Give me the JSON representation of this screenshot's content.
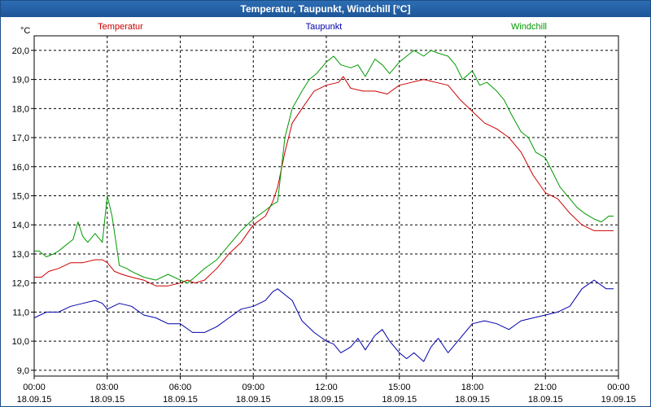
{
  "window": {
    "title": "Temperatur, Taupunkt, Windchill [°C]"
  },
  "chart_data": {
    "type": "line",
    "ylabel": "°C",
    "ylim": [
      8.8,
      20.5
    ],
    "xlim": [
      0,
      24
    ],
    "y_ticks": [
      9.0,
      10.0,
      11.0,
      12.0,
      13.0,
      14.0,
      15.0,
      16.0,
      17.0,
      18.0,
      19.0,
      20.0
    ],
    "y_tick_labels": [
      "9,0",
      "10,0",
      "11,0",
      "12,0",
      "13,0",
      "14,0",
      "15,0",
      "16,0",
      "17,0",
      "18,0",
      "19,0",
      "20,0"
    ],
    "x_ticks": [
      {
        "hour": 0,
        "time": "00:00",
        "date": "18.09.15"
      },
      {
        "hour": 3,
        "time": "03:00",
        "date": "18.09.15"
      },
      {
        "hour": 6,
        "time": "06:00",
        "date": "18.09.15"
      },
      {
        "hour": 9,
        "time": "09:00",
        "date": "18.09.15"
      },
      {
        "hour": 12,
        "time": "12:00",
        "date": "18.09.15"
      },
      {
        "hour": 15,
        "time": "15:00",
        "date": "18.09.15"
      },
      {
        "hour": 18,
        "time": "18:00",
        "date": "18.09.15"
      },
      {
        "hour": 21,
        "time": "21:00",
        "date": "18.09.15"
      },
      {
        "hour": 24,
        "time": "00:00",
        "date": "19.09.15"
      }
    ],
    "grid": true,
    "series": [
      {
        "name": "Temperatur",
        "color": "#cc0000",
        "x": [
          0.0,
          0.3,
          0.6,
          1.0,
          1.5,
          2.0,
          2.5,
          2.8,
          3.0,
          3.3,
          3.6,
          4.0,
          4.5,
          5.0,
          5.5,
          6.0,
          6.3,
          6.6,
          7.0,
          7.5,
          8.0,
          8.5,
          9.0,
          9.5,
          9.8,
          10.0,
          10.3,
          10.6,
          11.0,
          11.5,
          12.0,
          12.5,
          12.7,
          13.0,
          13.5,
          14.0,
          14.5,
          15.0,
          15.5,
          16.0,
          16.5,
          17.0,
          17.5,
          18.0,
          18.5,
          19.0,
          19.5,
          20.0,
          20.5,
          21.0,
          21.5,
          22.0,
          22.5,
          23.0,
          23.5,
          23.8
        ],
        "y": [
          12.2,
          12.2,
          12.4,
          12.5,
          12.7,
          12.7,
          12.8,
          12.8,
          12.7,
          12.4,
          12.3,
          12.2,
          12.1,
          11.9,
          11.9,
          12.0,
          12.1,
          12.0,
          12.1,
          12.5,
          13.0,
          13.4,
          14.0,
          14.3,
          14.8,
          15.3,
          16.5,
          17.5,
          18.0,
          18.6,
          18.8,
          18.9,
          19.1,
          18.7,
          18.6,
          18.6,
          18.5,
          18.8,
          18.9,
          19.0,
          18.9,
          18.8,
          18.3,
          17.9,
          17.5,
          17.3,
          17.0,
          16.5,
          15.7,
          15.1,
          14.9,
          14.4,
          14.0,
          13.8,
          13.8,
          13.8
        ]
      },
      {
        "name": "Taupunkt",
        "color": "#0000aa",
        "x": [
          0.0,
          0.5,
          1.0,
          1.5,
          2.0,
          2.5,
          2.8,
          3.0,
          3.5,
          4.0,
          4.5,
          5.0,
          5.5,
          6.0,
          6.5,
          7.0,
          7.5,
          8.0,
          8.5,
          9.0,
          9.5,
          9.8,
          10.0,
          10.3,
          10.6,
          11.0,
          11.5,
          12.0,
          12.3,
          12.6,
          13.0,
          13.3,
          13.6,
          14.0,
          14.3,
          14.6,
          15.0,
          15.3,
          15.6,
          16.0,
          16.3,
          16.6,
          17.0,
          17.5,
          18.0,
          18.5,
          19.0,
          19.5,
          20.0,
          20.5,
          21.0,
          21.5,
          22.0,
          22.5,
          23.0,
          23.5,
          23.8
        ],
        "y": [
          10.8,
          11.0,
          11.0,
          11.2,
          11.3,
          11.4,
          11.3,
          11.1,
          11.3,
          11.2,
          10.9,
          10.8,
          10.6,
          10.6,
          10.3,
          10.3,
          10.5,
          10.8,
          11.1,
          11.2,
          11.4,
          11.7,
          11.8,
          11.6,
          11.4,
          10.7,
          10.3,
          10.0,
          9.9,
          9.6,
          9.8,
          10.1,
          9.7,
          10.2,
          10.4,
          10.0,
          9.6,
          9.4,
          9.6,
          9.3,
          9.8,
          10.1,
          9.6,
          10.1,
          10.6,
          10.7,
          10.6,
          10.4,
          10.7,
          10.8,
          10.9,
          11.0,
          11.2,
          11.8,
          12.1,
          11.8,
          11.8
        ]
      },
      {
        "name": "Windchill",
        "color": "#009900",
        "x": [
          0.0,
          0.2,
          0.5,
          0.8,
          1.0,
          1.3,
          1.6,
          1.8,
          2.0,
          2.2,
          2.5,
          2.8,
          3.0,
          3.2,
          3.5,
          3.8,
          4.0,
          4.5,
          5.0,
          5.5,
          6.0,
          6.3,
          6.6,
          7.0,
          7.5,
          8.0,
          8.5,
          9.0,
          9.5,
          9.8,
          10.0,
          10.3,
          10.6,
          11.0,
          11.3,
          11.6,
          12.0,
          12.3,
          12.6,
          13.0,
          13.3,
          13.6,
          14.0,
          14.3,
          14.6,
          15.0,
          15.3,
          15.6,
          16.0,
          16.3,
          16.6,
          17.0,
          17.3,
          17.6,
          18.0,
          18.3,
          18.6,
          19.0,
          19.3,
          19.6,
          20.0,
          20.3,
          20.6,
          21.0,
          21.3,
          21.6,
          22.0,
          22.3,
          22.6,
          23.0,
          23.3,
          23.6,
          23.8
        ],
        "y": [
          13.1,
          13.1,
          12.9,
          13.0,
          13.1,
          13.3,
          13.5,
          14.1,
          13.6,
          13.4,
          13.7,
          13.4,
          15.0,
          14.3,
          12.6,
          12.5,
          12.4,
          12.2,
          12.1,
          12.3,
          12.1,
          12.0,
          12.2,
          12.5,
          12.8,
          13.3,
          13.8,
          14.2,
          14.5,
          14.7,
          14.8,
          17.0,
          18.0,
          18.6,
          19.0,
          19.2,
          19.6,
          19.8,
          19.5,
          19.4,
          19.5,
          19.1,
          19.7,
          19.5,
          19.2,
          19.6,
          19.8,
          20.0,
          19.8,
          20.0,
          19.9,
          19.8,
          19.5,
          19.0,
          19.3,
          18.8,
          18.9,
          18.6,
          18.3,
          17.8,
          17.2,
          17.0,
          16.5,
          16.3,
          15.8,
          15.3,
          14.9,
          14.6,
          14.4,
          14.2,
          14.1,
          14.3,
          14.3
        ]
      }
    ]
  }
}
